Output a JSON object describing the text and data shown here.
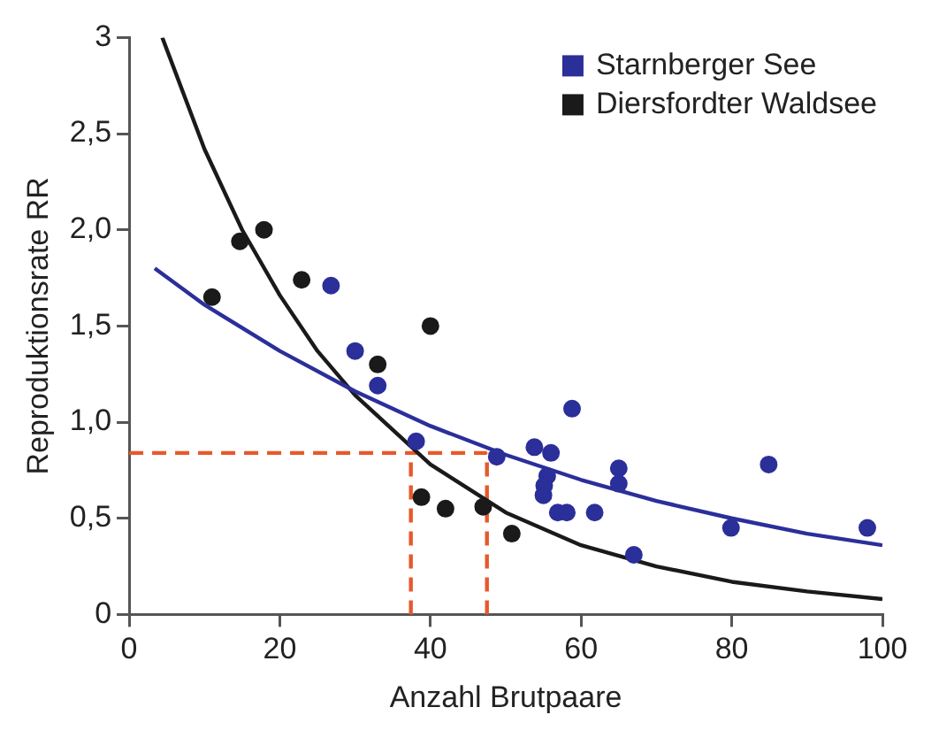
{
  "chart_data": {
    "type": "scatter",
    "xlabel": "Anzahl Brutpaare",
    "ylabel": "Reproduktionsrate RR",
    "xlim": [
      0,
      100
    ],
    "xticks": [
      0,
      20,
      40,
      60,
      80,
      100
    ],
    "ylim": [
      0,
      3
    ],
    "yticks": [
      0,
      {
        "value": 0.5,
        "label": "0,5"
      },
      {
        "value": 1,
        "label": "1,0"
      },
      {
        "value": 1.5,
        "label": "1,5"
      },
      {
        "value": 2,
        "label": "2,0"
      },
      {
        "value": 2.5,
        "label": "2,5"
      },
      3
    ],
    "grid": false,
    "legend": "top right",
    "marker": "circle",
    "series": [
      {
        "name": "Starnberger See",
        "color": "#2b2f9a",
        "x": [
          26.8,
          30.0,
          33.0,
          38.1,
          48.8,
          53.8,
          56.0,
          58.8,
          55.5,
          55.1,
          55.0,
          56.9,
          58.1,
          61.8,
          65.0,
          65.0,
          67.0,
          79.9,
          84.9,
          98.0
        ],
        "values": [
          1.71,
          1.37,
          1.19,
          0.9,
          0.82,
          0.87,
          0.84,
          1.07,
          0.72,
          0.67,
          0.62,
          0.53,
          0.53,
          0.53,
          0.76,
          0.68,
          0.31,
          0.45,
          0.78,
          0.45
        ]
      },
      {
        "name": "Diersfordter Waldsee",
        "color": "#1a1a1a",
        "x": [
          11.0,
          14.7,
          17.9,
          22.9,
          33.0,
          40.0,
          38.8,
          42.0,
          47.0,
          50.8
        ],
        "values": [
          1.65,
          1.94,
          2.0,
          1.74,
          1.3,
          1.5,
          0.61,
          0.55,
          0.56,
          0.42
        ]
      },
      {
        "type": "line",
        "color": "#2b2f9a",
        "marker": "none",
        "line_style": "solid",
        "x": [
          3.4,
          10,
          20,
          30,
          40,
          50,
          60,
          70,
          80,
          90,
          100
        ],
        "values": [
          1.8,
          1.61,
          1.37,
          1.16,
          0.98,
          0.83,
          0.7,
          0.59,
          0.5,
          0.42,
          0.36
        ]
      },
      {
        "type": "line",
        "color": "#1a1a1a",
        "marker": "none",
        "line_style": "solid",
        "x": [
          4.4,
          10,
          15,
          20,
          25,
          30,
          40,
          50,
          60,
          70,
          80,
          90,
          100
        ],
        "values": [
          3.0,
          2.42,
          2.0,
          1.66,
          1.37,
          1.14,
          0.78,
          0.53,
          0.36,
          0.25,
          0.17,
          0.12,
          0.08
        ]
      },
      {
        "type": "line",
        "color": "#e8582a",
        "marker": "none",
        "line_style": "dashed",
        "x": [
          0,
          47.5
        ],
        "values": [
          0.84,
          0.84
        ]
      },
      {
        "type": "line",
        "color": "#e8582a",
        "marker": "none",
        "line_style": "dashed",
        "x": [
          37.4,
          37.4
        ],
        "values": [
          0,
          0.84
        ]
      },
      {
        "type": "line",
        "color": "#e8582a",
        "marker": "none",
        "line_style": "dashed",
        "x": [
          47.5,
          47.5
        ],
        "values": [
          0,
          0.84
        ]
      }
    ]
  }
}
